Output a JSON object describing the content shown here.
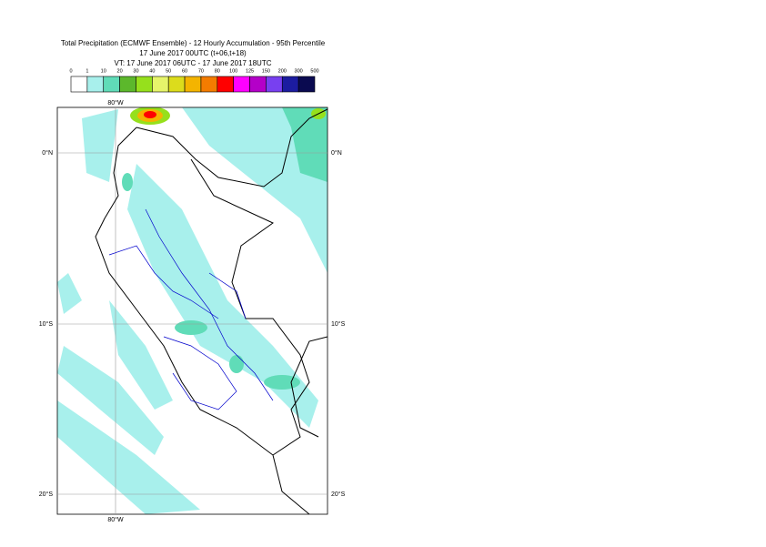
{
  "header": {
    "lines": [
      "Total Precipitation (ECMWF Ensemble) - 12 Hourly Accumulation - 95th Percentile",
      "17 June 2017 00UTC (t+06,t+18)",
      "VT: 17 June 2017 06UTC - 17 June 2017 18UTC"
    ]
  },
  "legend": {
    "labels": [
      "0",
      "1",
      "10",
      "20",
      "30",
      "40",
      "50",
      "60",
      "70",
      "80",
      "100",
      "125",
      "150",
      "200",
      "300",
      "500"
    ],
    "colors": [
      "#ffffff",
      "#a8f0ec",
      "#60dcb8",
      "#5cb82c",
      "#96e01c",
      "#e6f46a",
      "#dcdc1c",
      "#f4b400",
      "#f47c00",
      "#ff0000",
      "#ff00ff",
      "#b400c8",
      "#7840f0",
      "#1c1ca0",
      "#0a0a50"
    ]
  },
  "map": {
    "lon_labels": [
      "80°W",
      "80°W"
    ],
    "lat_labels": [
      "0°N",
      "0°N",
      "10°S",
      "10°S",
      "20°S",
      "20°S"
    ]
  }
}
